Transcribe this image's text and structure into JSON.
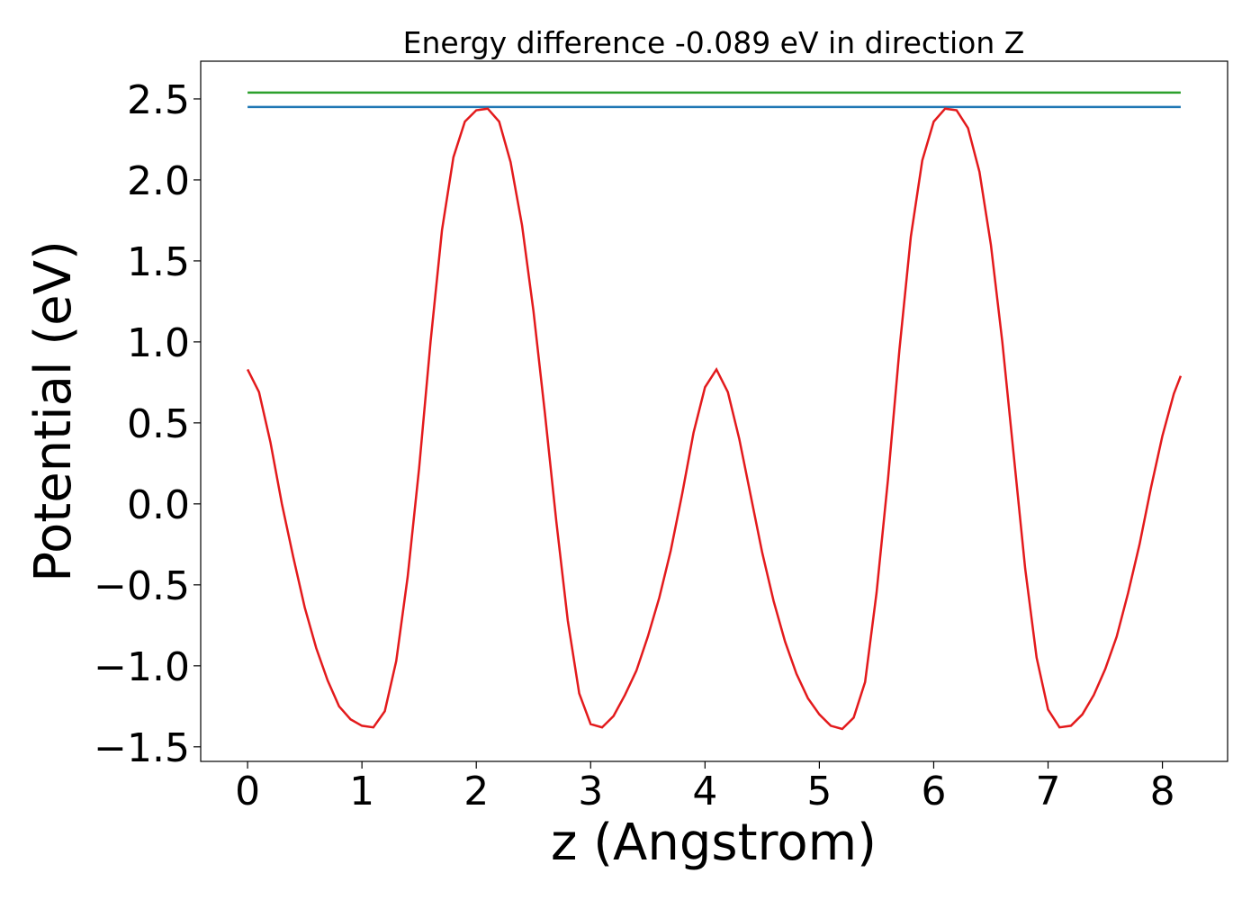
{
  "chart_data": {
    "type": "line",
    "title": "Energy difference -0.089 eV in direction Z",
    "xlabel": "z (Angstrom)",
    "ylabel": "Potential (eV)",
    "xlim": [
      -0.41,
      8.57
    ],
    "ylim": [
      -1.59,
      2.733
    ],
    "xticks": [
      0,
      1,
      2,
      3,
      4,
      5,
      6,
      7,
      8
    ],
    "yticks": [
      {
        "value": -1.5,
        "label": "−1.5"
      },
      {
        "value": -1.0,
        "label": "−1.0"
      },
      {
        "value": -0.5,
        "label": "−0.5"
      },
      {
        "value": 0.0,
        "label": "0.0"
      },
      {
        "value": 0.5,
        "label": "0.5"
      },
      {
        "value": 1.0,
        "label": "1.0"
      },
      {
        "value": 1.5,
        "label": "1.5"
      },
      {
        "value": 2.0,
        "label": "2.0"
      },
      {
        "value": 2.5,
        "label": "2.5"
      }
    ],
    "series": [
      {
        "color": "#2ca02c",
        "x": [
          0,
          8.16
        ],
        "values": [
          2.539,
          2.539
        ]
      },
      {
        "color": "#1f77b4",
        "x": [
          0,
          8.16
        ],
        "values": [
          2.45,
          2.45
        ]
      },
      {
        "color": "#e31a1c",
        "x": [
          0,
          0.1,
          0.2,
          0.3,
          0.4,
          0.5,
          0.6,
          0.7,
          0.8,
          0.9,
          1.0,
          1.1,
          1.2,
          1.3,
          1.4,
          1.5,
          1.6,
          1.7,
          1.8,
          1.9,
          2.0,
          2.1,
          2.2,
          2.3,
          2.4,
          2.5,
          2.6,
          2.7,
          2.8,
          2.9,
          3.0,
          3.1,
          3.2,
          3.3,
          3.4,
          3.5,
          3.6,
          3.7,
          3.8,
          3.9,
          4.0,
          4.1,
          4.2,
          4.3,
          4.4,
          4.5,
          4.6,
          4.7,
          4.8,
          4.9,
          5.0,
          5.1,
          5.2,
          5.3,
          5.4,
          5.5,
          5.6,
          5.7,
          5.8,
          5.9,
          6.0,
          6.1,
          6.2,
          6.3,
          6.4,
          6.5,
          6.6,
          6.7,
          6.8,
          6.9,
          7.0,
          7.1,
          7.2,
          7.3,
          7.4,
          7.5,
          7.6,
          7.7,
          7.8,
          7.9,
          8.0,
          8.1,
          8.16
        ],
        "values": [
          0.83,
          0.69,
          0.38,
          0.0,
          -0.33,
          -0.64,
          -0.89,
          -1.09,
          -1.25,
          -1.33,
          -1.37,
          -1.38,
          -1.28,
          -0.97,
          -0.45,
          0.22,
          1.0,
          1.69,
          2.14,
          2.36,
          2.43,
          2.44,
          2.36,
          2.11,
          1.72,
          1.19,
          0.56,
          -0.11,
          -0.72,
          -1.17,
          -1.36,
          -1.38,
          -1.31,
          -1.18,
          -1.03,
          -0.82,
          -0.58,
          -0.29,
          0.06,
          0.44,
          0.72,
          0.83,
          0.69,
          0.4,
          0.05,
          -0.3,
          -0.6,
          -0.85,
          -1.05,
          -1.2,
          -1.3,
          -1.37,
          -1.39,
          -1.32,
          -1.1,
          -0.55,
          0.15,
          0.95,
          1.65,
          2.12,
          2.36,
          2.44,
          2.43,
          2.32,
          2.05,
          1.6,
          1.0,
          0.3,
          -0.4,
          -0.95,
          -1.27,
          -1.38,
          -1.37,
          -1.3,
          -1.18,
          -1.02,
          -0.82,
          -0.55,
          -0.25,
          0.1,
          0.42,
          0.68,
          0.79
        ]
      }
    ]
  }
}
